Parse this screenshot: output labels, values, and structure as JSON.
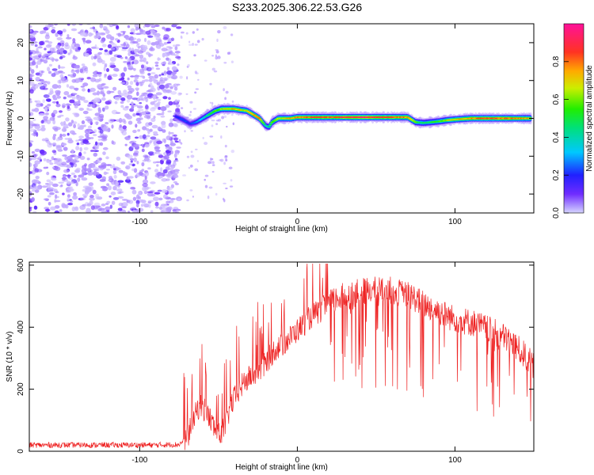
{
  "title": "S233.2025.306.22.53.G26",
  "chart_data": [
    {
      "type": "heatmap",
      "name": "spectrogram",
      "xlabel": "Height of straight line (km)",
      "ylabel": "Frequency (Hz)",
      "xlim": [
        -170,
        150
      ],
      "ylim": [
        -25,
        25
      ],
      "xticks": [
        -100,
        0,
        100
      ],
      "yticks": [
        -20,
        -10,
        0,
        10,
        20
      ],
      "colorbar": {
        "label": "Normalized spectral amplitude",
        "range": [
          0,
          1
        ],
        "ticks": [
          0.0,
          0.2,
          0.4,
          0.6,
          0.8
        ],
        "tick_labels": [
          "0.0",
          "0.2",
          "0.4",
          "0.6",
          "0.8"
        ]
      },
      "noise_region_x": [
        -170,
        -75
      ],
      "ridge": {
        "x": [
          -77,
          -72,
          -68,
          -64,
          -60,
          -56,
          -52,
          -48,
          -44,
          -40,
          -36,
          -32,
          -28,
          -24,
          -20,
          -18,
          -16,
          -12,
          -8,
          -4,
          0,
          10,
          20,
          30,
          40,
          50,
          60,
          70,
          75,
          80,
          85,
          90,
          95,
          100,
          110,
          120,
          130,
          140,
          148
        ],
        "freq": [
          0.5,
          -0.5,
          -1.5,
          -1,
          0,
          1,
          2,
          2.5,
          2.5,
          2.5,
          2.2,
          2,
          1,
          0,
          -2,
          -2.3,
          -1,
          0,
          0,
          0,
          0.3,
          0.3,
          0.3,
          0.3,
          0.3,
          0.3,
          0.3,
          0.3,
          -1,
          -1.2,
          -1,
          -0.8,
          -0.5,
          -0.3,
          0,
          0,
          0,
          0,
          0
        ],
        "amplitude": [
          0.2,
          0.25,
          0.2,
          0.3,
          0.35,
          0.5,
          0.6,
          0.7,
          0.75,
          0.8,
          0.75,
          0.7,
          0.8,
          0.85,
          0.4,
          0.5,
          0.6,
          0.7,
          0.75,
          0.8,
          0.85,
          0.9,
          0.9,
          0.95,
          1,
          0.95,
          0.9,
          0.85,
          0.6,
          0.5,
          0.55,
          0.6,
          0.7,
          0.75,
          0.85,
          0.9,
          0.9,
          0.85,
          0.8
        ]
      }
    },
    {
      "type": "line",
      "name": "snr",
      "xlabel": "Height of straight line (km)",
      "ylabel": "SNR (10 * v/v)",
      "xlim": [
        -170,
        150
      ],
      "ylim": [
        0,
        610
      ],
      "xticks": [
        -100,
        0,
        100
      ],
      "yticks": [
        0,
        200,
        400,
        600
      ],
      "color": "#ee2222",
      "series": [
        {
          "name": "SNR envelope",
          "x": [
            -170,
            -150,
            -130,
            -110,
            -90,
            -75,
            -70,
            -66,
            -62,
            -58,
            -54,
            -50,
            -46,
            -42,
            -38,
            -34,
            -30,
            -26,
            -22,
            -18,
            -14,
            -10,
            -6,
            -2,
            2,
            6,
            10,
            14,
            18,
            22,
            26,
            30,
            34,
            38,
            42,
            46,
            50,
            54,
            58,
            62,
            66,
            70,
            74,
            78,
            82,
            86,
            90,
            94,
            98,
            102,
            106,
            110,
            114,
            118,
            122,
            126,
            130,
            134,
            138,
            142,
            146,
            150
          ],
          "y": [
            20,
            20,
            20,
            20,
            20,
            22,
            40,
            100,
            150,
            130,
            90,
            50,
            80,
            150,
            190,
            220,
            240,
            250,
            270,
            300,
            330,
            340,
            360,
            380,
            400,
            420,
            440,
            450,
            470,
            480,
            495,
            500,
            505,
            510,
            515,
            520,
            520,
            520,
            520,
            515,
            510,
            505,
            495,
            480,
            470,
            460,
            450,
            440,
            430,
            425,
            420,
            415,
            410,
            400,
            390,
            380,
            370,
            360,
            340,
            320,
            300,
            270
          ]
        }
      ]
    }
  ]
}
